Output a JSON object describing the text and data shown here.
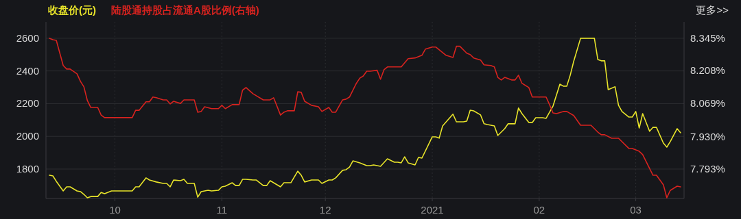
{
  "chart_data": {
    "type": "line",
    "legend": "top left",
    "grid": true,
    "xlim": [
      "2020-09-11",
      "2021-03-15"
    ],
    "xticks": [
      {
        "value": "2020-10-01",
        "label": "10"
      },
      {
        "value": "2020-11-01",
        "label": "11"
      },
      {
        "value": "2020-12-01",
        "label": "12"
      },
      {
        "value": "2021-01-01",
        "label": "2021"
      },
      {
        "value": "2021-02-01",
        "label": "02"
      },
      {
        "value": "2021-03-01",
        "label": "03"
      }
    ],
    "ylim": [
      1620,
      2700
    ],
    "yticks": [
      1800,
      2000,
      2200,
      2400,
      2600
    ],
    "y2lim": [
      7.669,
      8.414
    ],
    "y2ticks": [
      {
        "value": 7.793,
        "label": "7.793%"
      },
      {
        "value": 7.93,
        "label": "7.930%"
      },
      {
        "value": 8.069,
        "label": "8.069%"
      },
      {
        "value": 8.208,
        "label": "8.208%"
      },
      {
        "value": 8.345,
        "label": "8.345%"
      }
    ],
    "annotations": [
      "更多>>"
    ],
    "series": [
      {
        "name": "收盘价(元)",
        "color": "#e8e42a",
        "x": [
          "2020-09-12",
          "2020-09-13",
          "2020-09-14",
          "2020-09-16",
          "2020-09-17",
          "2020-09-18",
          "2020-09-20",
          "2020-09-21",
          "2020-09-22",
          "2020-09-23",
          "2020-09-24",
          "2020-09-26",
          "2020-09-27",
          "2020-09-28",
          "2020-09-30",
          "2020-10-06",
          "2020-10-07",
          "2020-10-08",
          "2020-10-10",
          "2020-10-11",
          "2020-10-13",
          "2020-10-15",
          "2020-10-16",
          "2020-10-17",
          "2020-10-18",
          "2020-10-20",
          "2020-10-21",
          "2020-10-22",
          "2020-10-24",
          "2020-10-25",
          "2020-10-26",
          "2020-10-28",
          "2020-10-29",
          "2020-10-31",
          "2020-11-01",
          "2020-11-02",
          "2020-11-04",
          "2020-11-05",
          "2020-11-06",
          "2020-11-07",
          "2020-11-08",
          "2020-11-10",
          "2020-11-11",
          "2020-11-13",
          "2020-11-14",
          "2020-11-15",
          "2020-11-18",
          "2020-11-19",
          "2020-11-21",
          "2020-11-23",
          "2020-11-24",
          "2020-11-25",
          "2020-11-27",
          "2020-11-29",
          "2020-11-30",
          "2020-12-02",
          "2020-12-03",
          "2020-12-04",
          "2020-12-06",
          "2020-12-07",
          "2020-12-08",
          "2020-12-09",
          "2020-12-11",
          "2020-12-13",
          "2020-12-14",
          "2020-12-15",
          "2020-12-17",
          "2020-12-19",
          "2020-12-21",
          "2020-12-22",
          "2020-12-23",
          "2020-12-24",
          "2020-12-25",
          "2020-12-27",
          "2020-12-28",
          "2020-12-29",
          "2021-01-01",
          "2021-01-02",
          "2021-01-03",
          "2021-01-04",
          "2021-01-07",
          "2021-01-08",
          "2021-01-10",
          "2021-01-11",
          "2021-01-12",
          "2021-01-13",
          "2021-01-15",
          "2021-01-16",
          "2021-01-17",
          "2021-01-19",
          "2021-01-20",
          "2021-01-22",
          "2021-01-23",
          "2021-01-25",
          "2021-01-26",
          "2021-01-27",
          "2021-01-29",
          "2021-01-30",
          "2021-01-31",
          "2021-02-02",
          "2021-02-03",
          "2021-02-05",
          "2021-02-07",
          "2021-02-08",
          "2021-02-09",
          "2021-02-10",
          "2021-02-11",
          "2021-02-13",
          "2021-02-17",
          "2021-02-18",
          "2021-02-19",
          "2021-02-20",
          "2021-02-21",
          "2021-02-23",
          "2021-02-24",
          "2021-02-25",
          "2021-02-27",
          "2021-02-28",
          "2021-03-01",
          "2021-03-02",
          "2021-03-03",
          "2021-03-05",
          "2021-03-06",
          "2021-03-07",
          "2021-03-09",
          "2021-03-10",
          "2021-03-11",
          "2021-03-13",
          "2021-03-14"
        ],
        "values": [
          1762,
          1758,
          1725,
          1666,
          1691,
          1691,
          1666,
          1662,
          1645,
          1624,
          1632,
          1632,
          1657,
          1649,
          1666,
          1666,
          1691,
          1691,
          1746,
          1733,
          1721,
          1712,
          1712,
          1691,
          1733,
          1729,
          1737,
          1712,
          1712,
          1628,
          1662,
          1670,
          1666,
          1670,
          1691,
          1695,
          1716,
          1699,
          1699,
          1737,
          1737,
          1733,
          1733,
          1699,
          1699,
          1729,
          1691,
          1716,
          1716,
          1787,
          1762,
          1721,
          1733,
          1733,
          1712,
          1733,
          1733,
          1746,
          1792,
          1796,
          1812,
          1850,
          1838,
          1821,
          1821,
          1825,
          1817,
          1863,
          1842,
          1842,
          1838,
          1875,
          1838,
          1825,
          1871,
          1867,
          1997,
          1997,
          1989,
          2064,
          2136,
          2089,
          2089,
          2093,
          2160,
          2156,
          2131,
          2077,
          2072,
          2064,
          2005,
          2047,
          2077,
          2077,
          2173,
          2139,
          2085,
          2085,
          2114,
          2114,
          2110,
          2185,
          2319,
          2307,
          2307,
          2374,
          2458,
          2600,
          2600,
          2470,
          2462,
          2462,
          2286,
          2303,
          2190,
          2152,
          2118,
          2118,
          2152,
          2051,
          2139,
          2031,
          2055,
          2055,
          1959,
          1934,
          1968,
          2047,
          2022
        ]
      },
      {
        "name": "陆股通持股占流通A股比例(右轴)",
        "color": "#d8231f",
        "axis": "y2",
        "x": [
          "2020-09-12",
          "2020-09-13",
          "2020-09-14",
          "2020-09-16",
          "2020-09-17",
          "2020-09-18",
          "2020-09-20",
          "2020-09-21",
          "2020-09-22",
          "2020-09-23",
          "2020-09-24",
          "2020-09-26",
          "2020-09-27",
          "2020-09-28",
          "2020-10-06",
          "2020-10-07",
          "2020-10-08",
          "2020-10-10",
          "2020-10-11",
          "2020-10-12",
          "2020-10-13",
          "2020-10-15",
          "2020-10-16",
          "2020-10-17",
          "2020-10-18",
          "2020-10-20",
          "2020-10-21",
          "2020-10-24",
          "2020-10-25",
          "2020-10-26",
          "2020-10-27",
          "2020-10-29",
          "2020-10-31",
          "2020-11-01",
          "2020-11-02",
          "2020-11-04",
          "2020-11-06",
          "2020-11-07",
          "2020-11-08",
          "2020-11-10",
          "2020-11-13",
          "2020-11-15",
          "2020-11-16",
          "2020-11-18",
          "2020-11-19",
          "2020-11-20",
          "2020-11-22",
          "2020-11-23",
          "2020-11-24",
          "2020-11-25",
          "2020-11-27",
          "2020-11-29",
          "2020-11-30",
          "2020-12-02",
          "2020-12-03",
          "2020-12-04",
          "2020-12-06",
          "2020-12-07",
          "2020-12-08",
          "2020-12-10",
          "2020-12-11",
          "2020-12-12",
          "2020-12-13",
          "2020-12-14",
          "2020-12-16",
          "2020-12-17",
          "2020-12-18",
          "2020-12-19",
          "2020-12-23",
          "2020-12-25",
          "2020-12-27",
          "2020-12-29",
          "2020-12-30",
          "2021-01-01",
          "2021-01-02",
          "2021-01-05",
          "2021-01-07",
          "2021-01-08",
          "2021-01-09",
          "2021-01-11",
          "2021-01-12",
          "2021-01-13",
          "2021-01-15",
          "2021-01-16",
          "2021-01-18",
          "2021-01-19",
          "2021-01-20",
          "2021-01-21",
          "2021-01-22",
          "2021-01-24",
          "2021-01-25",
          "2021-01-26",
          "2021-01-27",
          "2021-01-29",
          "2021-01-30",
          "2021-02-03",
          "2021-02-04",
          "2021-02-05",
          "2021-02-06",
          "2021-02-08",
          "2021-02-09",
          "2021-02-11",
          "2021-02-13",
          "2021-02-16",
          "2021-02-18",
          "2021-02-19",
          "2021-02-20",
          "2021-02-22",
          "2021-02-24",
          "2021-02-27",
          "2021-02-28",
          "2021-03-02",
          "2021-03-03",
          "2021-03-05",
          "2021-03-06",
          "2021-03-07",
          "2021-03-09",
          "2021-03-10",
          "2021-03-11",
          "2021-03-13",
          "2021-03-14"
        ],
        "values": [
          8.345,
          8.339,
          8.336,
          8.23,
          8.215,
          8.215,
          8.195,
          8.163,
          8.14,
          8.082,
          8.053,
          8.053,
          8.021,
          8.01,
          8.01,
          8.041,
          8.041,
          8.077,
          8.077,
          8.097,
          8.094,
          8.085,
          8.085,
          8.068,
          8.079,
          8.07,
          8.085,
          8.085,
          8.033,
          8.036,
          8.056,
          8.048,
          8.048,
          8.062,
          8.048,
          8.065,
          8.065,
          8.126,
          8.137,
          8.111,
          8.085,
          8.085,
          8.094,
          8.021,
          8.033,
          8.039,
          8.039,
          8.119,
          8.117,
          8.079,
          8.062,
          8.056,
          8.036,
          8.053,
          8.033,
          8.033,
          8.085,
          8.088,
          8.097,
          8.155,
          8.177,
          8.186,
          8.206,
          8.206,
          8.21,
          8.172,
          8.212,
          8.224,
          8.224,
          8.259,
          8.262,
          8.273,
          8.299,
          8.308,
          8.308,
          8.273,
          8.264,
          8.311,
          8.311,
          8.282,
          8.276,
          8.262,
          8.253,
          8.233,
          8.23,
          8.224,
          8.18,
          8.169,
          8.18,
          8.169,
          8.169,
          8.189,
          8.155,
          8.137,
          8.097,
          8.097,
          8.065,
          8.03,
          8.027,
          8.036,
          8.036,
          8.019,
          7.978,
          7.978,
          7.949,
          7.938,
          7.938,
          7.923,
          7.923,
          7.88,
          7.88,
          7.868,
          7.854,
          7.796,
          7.767,
          7.767,
          7.727,
          7.672,
          7.703,
          7.721,
          7.718
        ]
      }
    ]
  }
}
